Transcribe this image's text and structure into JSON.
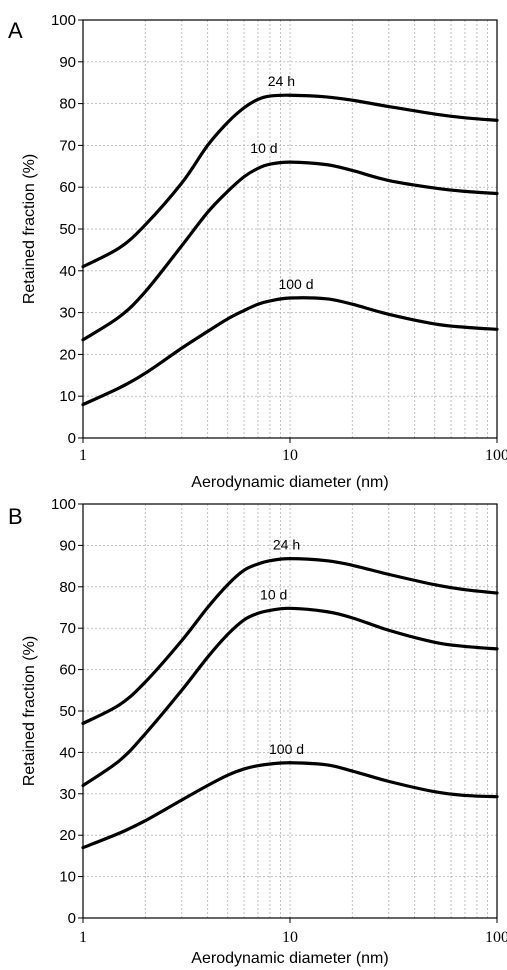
{
  "chart_data": [
    {
      "type": "line",
      "panel_label": "A",
      "xlabel": "Aerodynamic diameter (nm)",
      "ylabel": "Retained fraction (%)",
      "xscale": "log",
      "xlim": [
        1,
        100
      ],
      "ylim": [
        0,
        100
      ],
      "xticks": [
        1,
        10,
        100
      ],
      "yticks": [
        0,
        10,
        20,
        30,
        40,
        50,
        60,
        70,
        80,
        90,
        100
      ],
      "grid": true,
      "series": [
        {
          "name": "24 h",
          "x": [
            1,
            1.5,
            2,
            3,
            4,
            5,
            6,
            7,
            8,
            10,
            15,
            20,
            30,
            50,
            70,
            100
          ],
          "y": [
            41,
            45.5,
            51,
            61,
            70,
            75.5,
            79,
            81,
            81.8,
            82,
            81.6,
            80.8,
            79.3,
            77.5,
            76.6,
            76
          ]
        },
        {
          "name": "10 d",
          "x": [
            1,
            1.5,
            2,
            3,
            4,
            5,
            6,
            7,
            8,
            10,
            15,
            20,
            30,
            50,
            70,
            100
          ],
          "y": [
            23.5,
            29,
            35,
            46,
            54,
            59,
            62.5,
            64.5,
            65.5,
            66,
            65.4,
            64,
            61.6,
            59.8,
            59,
            58.5
          ]
        },
        {
          "name": "100 d",
          "x": [
            1,
            1.5,
            2,
            3,
            4,
            5,
            6,
            7,
            8,
            10,
            15,
            20,
            30,
            50,
            70,
            100
          ],
          "y": [
            8,
            12,
            15.5,
            21.5,
            25.5,
            28.5,
            30.5,
            32,
            32.8,
            33.5,
            33.3,
            32,
            29.6,
            27.3,
            26.5,
            26
          ]
        }
      ],
      "series_labels": [
        "24 h",
        "10 d",
        "100 d"
      ]
    },
    {
      "type": "line",
      "panel_label": "B",
      "xlabel": "Aerodynamic diameter (nm)",
      "ylabel": "Retained fraction (%)",
      "xscale": "log",
      "xlim": [
        1,
        100
      ],
      "ylim": [
        0,
        100
      ],
      "xticks": [
        1,
        10,
        100
      ],
      "yticks": [
        0,
        10,
        20,
        30,
        40,
        50,
        60,
        70,
        80,
        90,
        100
      ],
      "grid": true,
      "series": [
        {
          "name": "24 h",
          "x": [
            1,
            1.5,
            2,
            3,
            4,
            5,
            6,
            7,
            8,
            10,
            15,
            20,
            30,
            50,
            70,
            100
          ],
          "y": [
            47,
            51.5,
            57,
            67,
            75,
            80.5,
            84,
            85.5,
            86.3,
            86.8,
            86.3,
            85.2,
            83,
            80.5,
            79.3,
            78.5
          ]
        },
        {
          "name": "10 d",
          "x": [
            1,
            1.5,
            2,
            3,
            4,
            5,
            6,
            7,
            8,
            10,
            15,
            20,
            30,
            50,
            70,
            100
          ],
          "y": [
            32,
            38,
            44.5,
            55,
            63,
            68.5,
            72,
            73.6,
            74.3,
            74.8,
            74,
            72.5,
            69.5,
            66.6,
            65.6,
            65
          ]
        },
        {
          "name": "100 d",
          "x": [
            1,
            1.5,
            2,
            3,
            4,
            5,
            6,
            7,
            8,
            10,
            15,
            20,
            30,
            50,
            70,
            100
          ],
          "y": [
            17,
            20.5,
            23.5,
            28.5,
            32,
            34.5,
            36,
            36.8,
            37.2,
            37.5,
            37,
            35.5,
            33,
            30.5,
            29.6,
            29.3
          ]
        }
      ],
      "series_labels": [
        "24 h",
        "10 d",
        "100 d"
      ]
    }
  ]
}
